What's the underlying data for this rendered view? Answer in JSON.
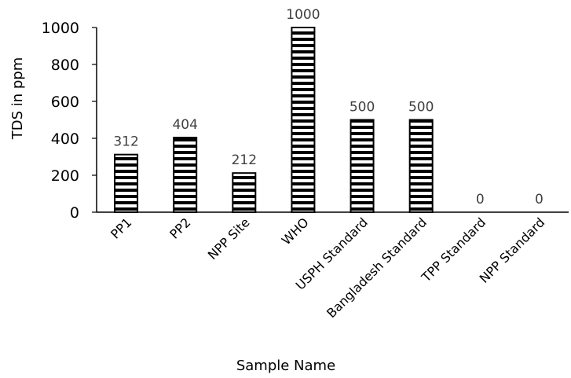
{
  "chart_data": {
    "type": "bar",
    "title": "",
    "xlabel": "Sample Name",
    "ylabel": "TDS in ppm",
    "categories": [
      "PP1",
      "PP2",
      "NPP Site",
      "WHO",
      "USPH Standard",
      "Bangladesh Standard",
      "TPP Standard",
      "NPP Standard"
    ],
    "values": [
      312,
      404,
      212,
      1000,
      500,
      500,
      0,
      0
    ],
    "data_labels": [
      "312",
      "404",
      "212",
      "1000",
      "500",
      "500",
      "0",
      "0"
    ],
    "ylim": [
      0,
      1000
    ],
    "yticks": [
      0,
      200,
      400,
      600,
      800,
      1000
    ],
    "ytick_labels": [
      "0",
      "200",
      "400",
      "600",
      "800",
      "1000"
    ],
    "grid": false,
    "legend": "none",
    "bar_fill": "horizontal stripes",
    "colors": {
      "bar_stroke": "#000000",
      "bar_stripe": "#000000",
      "bar_bg": "#ffffff",
      "data_label": "#404040"
    }
  }
}
